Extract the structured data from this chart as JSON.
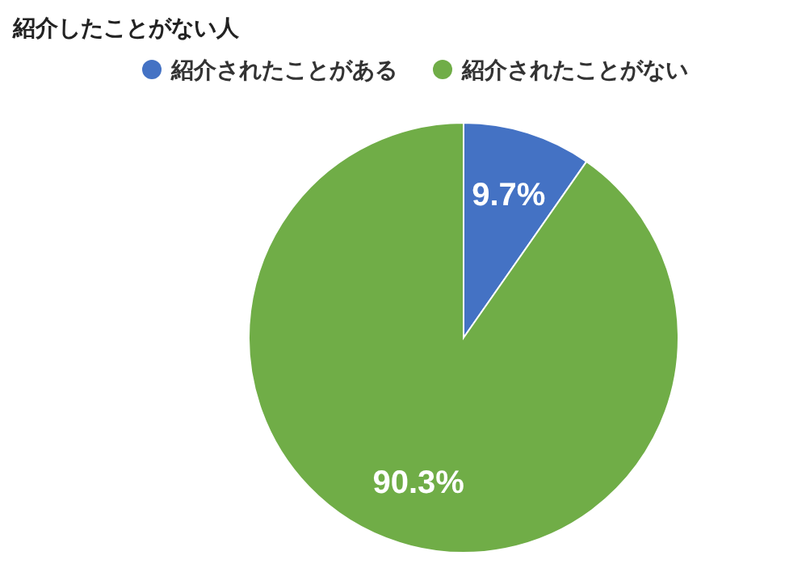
{
  "chart_data": {
    "type": "pie",
    "title": "紹介したことがない人",
    "categories": [
      "紹介されたことがある",
      "紹介されたことがない"
    ],
    "values": [
      9.7,
      90.3
    ],
    "colors": [
      "#4472c4",
      "#70ad47"
    ],
    "value_labels": [
      "9.7%",
      "90.3%"
    ],
    "legend": "top"
  }
}
